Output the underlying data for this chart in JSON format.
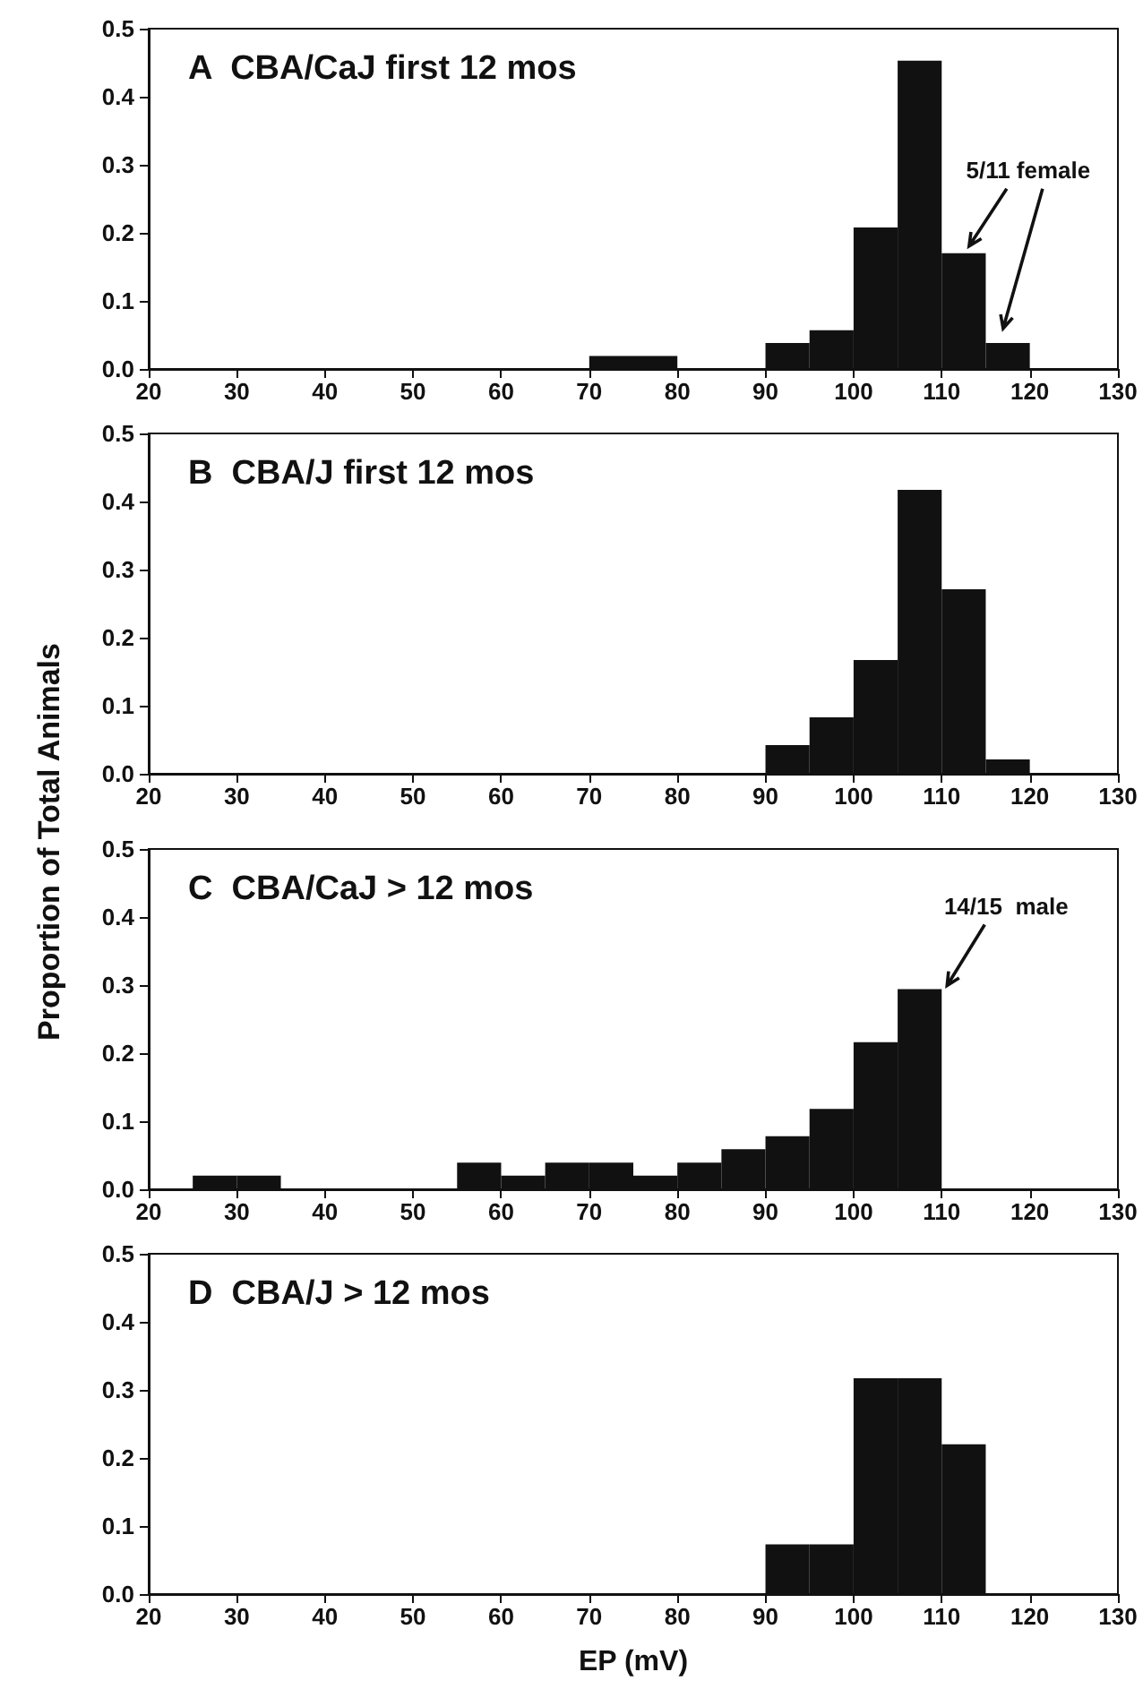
{
  "chart_data": [
    {
      "type": "histogram",
      "title": "A  CBA/CaJ first 12 mos",
      "bins": [
        70,
        75,
        80,
        85,
        90,
        95,
        100,
        105,
        110,
        115,
        120
      ],
      "values": [
        0.019,
        0.019,
        0,
        0,
        0.038,
        0.057,
        0.208,
        0.453,
        0.17,
        0.038
      ],
      "color": "#111111",
      "xlim": [
        20,
        130
      ],
      "xticks": [
        20,
        30,
        40,
        50,
        60,
        70,
        80,
        90,
        100,
        110,
        120,
        130
      ],
      "ylim": [
        0,
        0.5
      ],
      "yticks": [
        {
          "value": 0,
          "label": "0.0"
        },
        {
          "value": 0.1,
          "label": "0.1"
        },
        {
          "value": 0.2,
          "label": "0.2"
        },
        {
          "value": 0.3,
          "label": "0.3"
        },
        {
          "value": 0.4,
          "label": "0.4"
        },
        {
          "value": 0.5,
          "label": "0.5"
        }
      ],
      "annotations": [
        {
          "text": "5/11 female",
          "x": 112.5,
          "y": 0.17
        }
      ]
    },
    {
      "type": "histogram",
      "title": "B  CBA/J first 12 mos",
      "bins": [
        90,
        95,
        100,
        105,
        110,
        115,
        120
      ],
      "values": [
        0.042,
        0.083,
        0.167,
        0.417,
        0.271,
        0.021
      ],
      "color": "#111111",
      "xlim": [
        20,
        130
      ],
      "xticks": [
        20,
        30,
        40,
        50,
        60,
        70,
        80,
        90,
        100,
        110,
        120,
        130
      ],
      "ylim": [
        0,
        0.5
      ],
      "yticks": [
        {
          "value": 0,
          "label": "0.0"
        },
        {
          "value": 0.1,
          "label": "0.1"
        },
        {
          "value": 0.2,
          "label": "0.2"
        },
        {
          "value": 0.3,
          "label": "0.3"
        },
        {
          "value": 0.4,
          "label": "0.4"
        },
        {
          "value": 0.5,
          "label": "0.5"
        }
      ]
    },
    {
      "type": "histogram",
      "title": "C  CBA/CaJ > 12 mos",
      "ylabel": "Proportion of Total Animals",
      "bins": [
        25,
        30,
        35,
        40,
        45,
        50,
        55,
        60,
        65,
        70,
        75,
        80,
        85,
        90,
        95,
        100,
        105,
        110
      ],
      "values": [
        0.02,
        0.02,
        0,
        0,
        0,
        0,
        0.039,
        0.02,
        0.039,
        0.039,
        0.02,
        0.039,
        0.059,
        0.078,
        0.118,
        0.216,
        0.294
      ],
      "color": "#111111",
      "xlim": [
        20,
        130
      ],
      "xticks": [
        20,
        30,
        40,
        50,
        60,
        70,
        80,
        90,
        100,
        110,
        120,
        130
      ],
      "ylim": [
        0,
        0.5
      ],
      "yticks": [
        {
          "value": 0,
          "label": "0.0"
        },
        {
          "value": 0.1,
          "label": "0.1"
        },
        {
          "value": 0.2,
          "label": "0.2"
        },
        {
          "value": 0.3,
          "label": "0.3"
        },
        {
          "value": 0.4,
          "label": "0.4"
        },
        {
          "value": 0.5,
          "label": "0.5"
        }
      ],
      "annotations": [
        {
          "text": "14/15  male",
          "x": 110,
          "y": 0.294
        }
      ]
    },
    {
      "type": "histogram",
      "title": "D  CBA/J > 12 mos",
      "xlabel": "EP (mV)",
      "bins": [
        90,
        95,
        100,
        105,
        110,
        115
      ],
      "values": [
        0.073,
        0.073,
        0.317,
        0.317,
        0.22
      ],
      "color": "#111111",
      "xlim": [
        20,
        130
      ],
      "xticks": [
        20,
        30,
        40,
        50,
        60,
        70,
        80,
        90,
        100,
        110,
        120,
        130
      ],
      "ylim": [
        0,
        0.5
      ],
      "yticks": [
        {
          "value": 0,
          "label": "0.0"
        },
        {
          "value": 0.1,
          "label": "0.1"
        },
        {
          "value": 0.2,
          "label": "0.2"
        },
        {
          "value": 0.3,
          "label": "0.3"
        },
        {
          "value": 0.4,
          "label": "0.4"
        },
        {
          "value": 0.5,
          "label": "0.5"
        }
      ]
    }
  ]
}
